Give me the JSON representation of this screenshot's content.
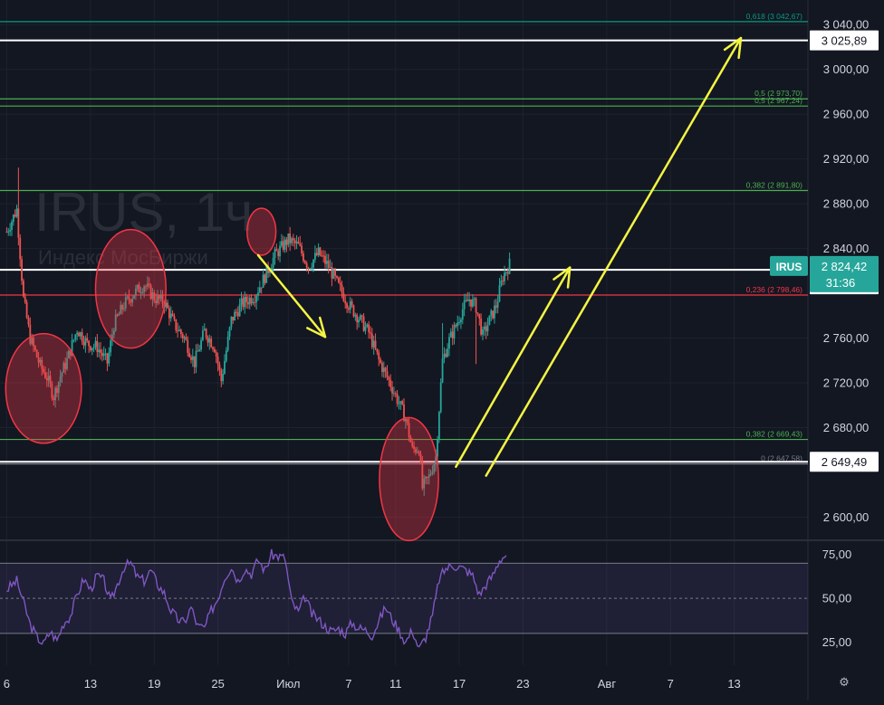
{
  "chart_data": {
    "type": "candlestick",
    "symbol": "IRUS, 1ч",
    "subtitle": "Индекс МосБиржи",
    "colors": {
      "background": "#131722",
      "up": "#26a69a",
      "down": "#ef5350",
      "grid": "#1e222d",
      "fib_green": "#4caf50",
      "fib_red": "#f23645",
      "fib_teal": "#089981",
      "key_level": "#ffffff",
      "arrow": "#f5f542",
      "circle_fill": "#f23645",
      "rsi_line": "#7e57c2",
      "rsi_band": "#7e57c2"
    },
    "price_axis": {
      "ticks": [
        "3 040,00",
        "3 000,00",
        "2 960,00",
        "2 920,00",
        "2 880,00",
        "2 840,00",
        "2 760,00",
        "2 720,00",
        "2 680,00",
        "2 600,00"
      ],
      "tick_values": [
        3040,
        3000,
        2960,
        2920,
        2880,
        2840,
        2760,
        2720,
        2680,
        2600
      ],
      "range": [
        2585,
        3062
      ]
    },
    "time_axis": {
      "labels": [
        "6",
        "13",
        "19",
        "25",
        "Июл",
        "7",
        "11",
        "17",
        "23",
        "Авг",
        "7",
        "13"
      ],
      "positions": [
        0,
        25,
        44,
        63,
        84,
        102,
        116,
        135,
        154,
        179,
        198,
        217
      ],
      "range": [
        -2,
        239
      ]
    },
    "fib_levels": [
      {
        "label": "0,618 (3 042,67)",
        "value": 3042.67,
        "color": "#089981"
      },
      {
        "label": "0,5 (2 973,70)",
        "value": 2973.7,
        "color": "#4caf50"
      },
      {
        "label": "0,5 (2 967,24)",
        "value": 2967.24,
        "color": "#4caf50"
      },
      {
        "label": "0,382 (2 891,80)",
        "value": 2891.8,
        "color": "#4caf50"
      },
      {
        "label": "0,236 (2 798,46)",
        "value": 2798.46,
        "color": "#f23645"
      },
      {
        "label": "0,382 (2 669,43)",
        "value": 2669.43,
        "color": "#4caf50"
      },
      {
        "label": "0 (2 647,58)",
        "value": 2647.58,
        "color": "#787b86"
      }
    ],
    "key_levels": [
      {
        "label": "3 025,89",
        "value": 3025.89
      },
      {
        "label": "2 820,94",
        "value": 2820.94
      },
      {
        "label": "2 649,49",
        "value": 2649.49
      }
    ],
    "price_tag": {
      "symbol": "IRUS",
      "value": "2 824,42",
      "countdown": "31:36",
      "level": 2824.42
    },
    "close_path": [
      [
        0,
        2855
      ],
      [
        3,
        2875
      ],
      [
        5,
        2795
      ],
      [
        7,
        2760
      ],
      [
        10,
        2735
      ],
      [
        12,
        2725
      ],
      [
        14,
        2708
      ],
      [
        16,
        2726
      ],
      [
        18,
        2740
      ],
      [
        21,
        2768
      ],
      [
        24,
        2755
      ],
      [
        27,
        2752
      ],
      [
        30,
        2738
      ],
      [
        32,
        2772
      ],
      [
        35,
        2790
      ],
      [
        38,
        2800
      ],
      [
        41,
        2808
      ],
      [
        44,
        2796
      ],
      [
        47,
        2792
      ],
      [
        50,
        2772
      ],
      [
        53,
        2760
      ],
      [
        56,
        2738
      ],
      [
        59,
        2766
      ],
      [
        62,
        2752
      ],
      [
        64,
        2722
      ],
      [
        67,
        2776
      ],
      [
        70,
        2790
      ],
      [
        74,
        2798
      ],
      [
        77,
        2815
      ],
      [
        80,
        2834
      ],
      [
        84,
        2848
      ],
      [
        87,
        2842
      ],
      [
        90,
        2824
      ],
      [
        93,
        2836
      ],
      [
        96,
        2824
      ],
      [
        99,
        2806
      ],
      [
        102,
        2790
      ],
      [
        105,
        2778
      ],
      [
        108,
        2765
      ],
      [
        111,
        2740
      ],
      [
        114,
        2722
      ],
      [
        117,
        2702
      ],
      [
        119,
        2688
      ],
      [
        121,
        2660
      ],
      [
        123,
        2662
      ],
      [
        124,
        2626
      ],
      [
        126,
        2636
      ],
      [
        128,
        2654
      ],
      [
        130,
        2740
      ],
      [
        132,
        2758
      ],
      [
        134,
        2771
      ],
      [
        136,
        2786
      ],
      [
        138,
        2795
      ],
      [
        140,
        2788
      ],
      [
        142,
        2762
      ],
      [
        144,
        2776
      ],
      [
        146,
        2789
      ],
      [
        148,
        2815
      ],
      [
        150,
        2826
      ]
    ],
    "rsi": {
      "ticks": [
        "75,00",
        "50,00",
        "25,00"
      ],
      "tick_values": [
        75,
        50,
        25
      ],
      "range": [
        16,
        80
      ],
      "band": [
        30,
        70
      ],
      "path": [
        [
          0,
          55
        ],
        [
          3,
          60
        ],
        [
          5,
          48
        ],
        [
          7,
          35
        ],
        [
          9,
          28
        ],
        [
          11,
          24
        ],
        [
          13,
          31
        ],
        [
          15,
          26
        ],
        [
          17,
          36
        ],
        [
          19,
          40
        ],
        [
          21,
          52
        ],
        [
          23,
          61
        ],
        [
          25,
          55
        ],
        [
          27,
          63
        ],
        [
          29,
          60
        ],
        [
          31,
          48
        ],
        [
          33,
          58
        ],
        [
          35,
          68
        ],
        [
          37,
          70
        ],
        [
          39,
          62
        ],
        [
          41,
          60
        ],
        [
          43,
          66
        ],
        [
          45,
          58
        ],
        [
          47,
          53
        ],
        [
          49,
          43
        ],
        [
          51,
          38
        ],
        [
          53,
          36
        ],
        [
          55,
          45
        ],
        [
          57,
          34
        ],
        [
          59,
          33
        ],
        [
          61,
          43
        ],
        [
          63,
          50
        ],
        [
          65,
          62
        ],
        [
          67,
          68
        ],
        [
          69,
          60
        ],
        [
          71,
          67
        ],
        [
          73,
          64
        ],
        [
          75,
          72
        ],
        [
          77,
          66
        ],
        [
          79,
          75
        ],
        [
          81,
          74
        ],
        [
          83,
          73
        ],
        [
          85,
          48
        ],
        [
          87,
          42
        ],
        [
          89,
          51
        ],
        [
          91,
          41
        ],
        [
          93,
          38
        ],
        [
          95,
          34
        ],
        [
          97,
          31
        ],
        [
          99,
          33
        ],
        [
          101,
          30
        ],
        [
          103,
          36
        ],
        [
          105,
          33
        ],
        [
          107,
          32
        ],
        [
          109,
          29
        ],
        [
          111,
          37
        ],
        [
          113,
          45
        ],
        [
          115,
          38
        ],
        [
          117,
          32
        ],
        [
          119,
          25
        ],
        [
          121,
          32
        ],
        [
          123,
          21
        ],
        [
          125,
          28
        ],
        [
          127,
          40
        ],
        [
          129,
          61
        ],
        [
          131,
          67
        ],
        [
          133,
          69
        ],
        [
          135,
          68
        ],
        [
          137,
          66
        ],
        [
          139,
          63
        ],
        [
          141,
          52
        ],
        [
          143,
          58
        ],
        [
          145,
          63
        ],
        [
          147,
          72
        ],
        [
          149,
          75
        ]
      ]
    },
    "annotations": {
      "circles": [
        {
          "x": 11,
          "y": 2715,
          "rx": 11.3,
          "ry": 49
        },
        {
          "x": 37,
          "y": 2804,
          "rx": 10.5,
          "ry": 53
        },
        {
          "x": 76,
          "y": 2855,
          "rx": 4.3,
          "ry": 21
        },
        {
          "x": 120,
          "y": 2634,
          "rx": 8.8,
          "ry": 55
        }
      ],
      "arrows": [
        {
          "from": [
            75,
            2834
          ],
          "to": [
            95,
            2761
          ]
        },
        {
          "from": [
            134,
            2645
          ],
          "to": [
            168,
            2823
          ]
        },
        {
          "from": [
            143,
            2637
          ],
          "to": [
            219,
            3028
          ]
        }
      ]
    }
  }
}
